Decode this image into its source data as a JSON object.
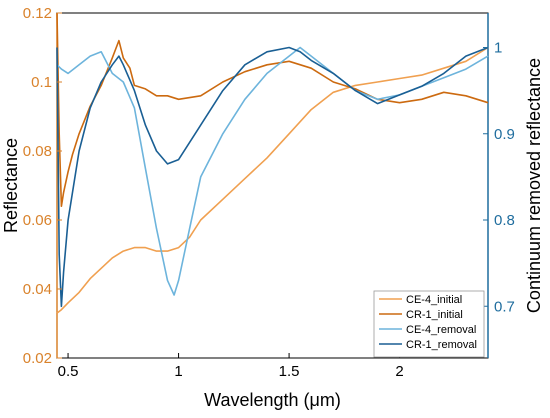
{
  "chart_data": {
    "type": "line",
    "title": "",
    "xlabel": "Wavelength (μm)",
    "ylabel_left": "Reflectance",
    "ylabel_right": "Continuum removed reflectance",
    "xlim": [
      0.45,
      2.4
    ],
    "ylim_left": [
      0.02,
      0.12
    ],
    "ylim_right": [
      0.64,
      1.04
    ],
    "x_ticks": [
      "0.5",
      "1",
      "1.5",
      "2"
    ],
    "y_ticks_left": [
      "0.02",
      "0.04",
      "0.06",
      "0.08",
      "0.1",
      "0.12"
    ],
    "y_ticks_right": [
      "0.7",
      "0.8",
      "0.9",
      "1"
    ],
    "legend_position": "bottom-right",
    "colors": {
      "left_axis": "#d9822b",
      "right_axis": "#1f6d9e",
      "CE-4_initial": "#f0a050",
      "CR-1_initial": "#cc6a10",
      "CE-4_removal": "#6db4dc",
      "CR-1_removal": "#1a5f94"
    },
    "series": [
      {
        "name": "CE-4_initial",
        "axis": "left",
        "x": [
          0.45,
          0.47,
          0.5,
          0.55,
          0.6,
          0.65,
          0.7,
          0.75,
          0.8,
          0.85,
          0.9,
          0.95,
          1.0,
          1.05,
          1.1,
          1.2,
          1.3,
          1.4,
          1.5,
          1.6,
          1.7,
          1.8,
          1.9,
          2.0,
          2.1,
          2.2,
          2.3,
          2.4
        ],
        "y": [
          0.033,
          0.034,
          0.036,
          0.039,
          0.043,
          0.046,
          0.049,
          0.051,
          0.052,
          0.052,
          0.051,
          0.051,
          0.052,
          0.055,
          0.06,
          0.066,
          0.072,
          0.078,
          0.085,
          0.092,
          0.097,
          0.099,
          0.1,
          0.101,
          0.102,
          0.104,
          0.106,
          0.11
        ]
      },
      {
        "name": "CR-1_initial",
        "axis": "left",
        "x": [
          0.45,
          0.46,
          0.47,
          0.48,
          0.5,
          0.52,
          0.55,
          0.6,
          0.65,
          0.7,
          0.73,
          0.75,
          0.78,
          0.8,
          0.85,
          0.9,
          0.95,
          1.0,
          1.1,
          1.2,
          1.3,
          1.4,
          1.5,
          1.6,
          1.7,
          1.8,
          1.9,
          2.0,
          2.1,
          2.2,
          2.3,
          2.4
        ],
        "y": [
          0.12,
          0.085,
          0.064,
          0.068,
          0.074,
          0.079,
          0.085,
          0.093,
          0.099,
          0.107,
          0.112,
          0.107,
          0.104,
          0.099,
          0.098,
          0.096,
          0.096,
          0.095,
          0.096,
          0.1,
          0.103,
          0.105,
          0.106,
          0.104,
          0.1,
          0.098,
          0.095,
          0.094,
          0.095,
          0.097,
          0.096,
          0.094
        ]
      },
      {
        "name": "CE-4_removal",
        "axis": "right",
        "x": [
          0.45,
          0.47,
          0.5,
          0.55,
          0.6,
          0.65,
          0.7,
          0.75,
          0.8,
          0.85,
          0.9,
          0.95,
          0.98,
          1.0,
          1.05,
          1.1,
          1.2,
          1.3,
          1.4,
          1.5,
          1.55,
          1.6,
          1.7,
          1.8,
          1.9,
          2.0,
          2.1,
          2.2,
          2.3,
          2.4
        ],
        "y": [
          0.98,
          0.975,
          0.97,
          0.98,
          0.99,
          0.995,
          0.97,
          0.96,
          0.93,
          0.86,
          0.79,
          0.73,
          0.713,
          0.73,
          0.79,
          0.85,
          0.9,
          0.94,
          0.97,
          0.99,
          1.0,
          0.99,
          0.97,
          0.95,
          0.94,
          0.945,
          0.955,
          0.965,
          0.975,
          0.99
        ]
      },
      {
        "name": "CR-1_removal",
        "axis": "right",
        "x": [
          0.45,
          0.46,
          0.47,
          0.48,
          0.5,
          0.55,
          0.6,
          0.65,
          0.7,
          0.73,
          0.75,
          0.8,
          0.85,
          0.9,
          0.95,
          1.0,
          1.1,
          1.2,
          1.3,
          1.4,
          1.5,
          1.55,
          1.6,
          1.7,
          1.8,
          1.9,
          2.0,
          2.1,
          2.2,
          2.3,
          2.4
        ],
        "y": [
          1.0,
          0.76,
          0.7,
          0.74,
          0.8,
          0.88,
          0.93,
          0.96,
          0.98,
          0.99,
          0.98,
          0.95,
          0.91,
          0.88,
          0.865,
          0.87,
          0.91,
          0.95,
          0.98,
          0.995,
          1.0,
          0.995,
          0.985,
          0.97,
          0.95,
          0.935,
          0.945,
          0.955,
          0.97,
          0.99,
          1.0
        ]
      }
    ]
  }
}
